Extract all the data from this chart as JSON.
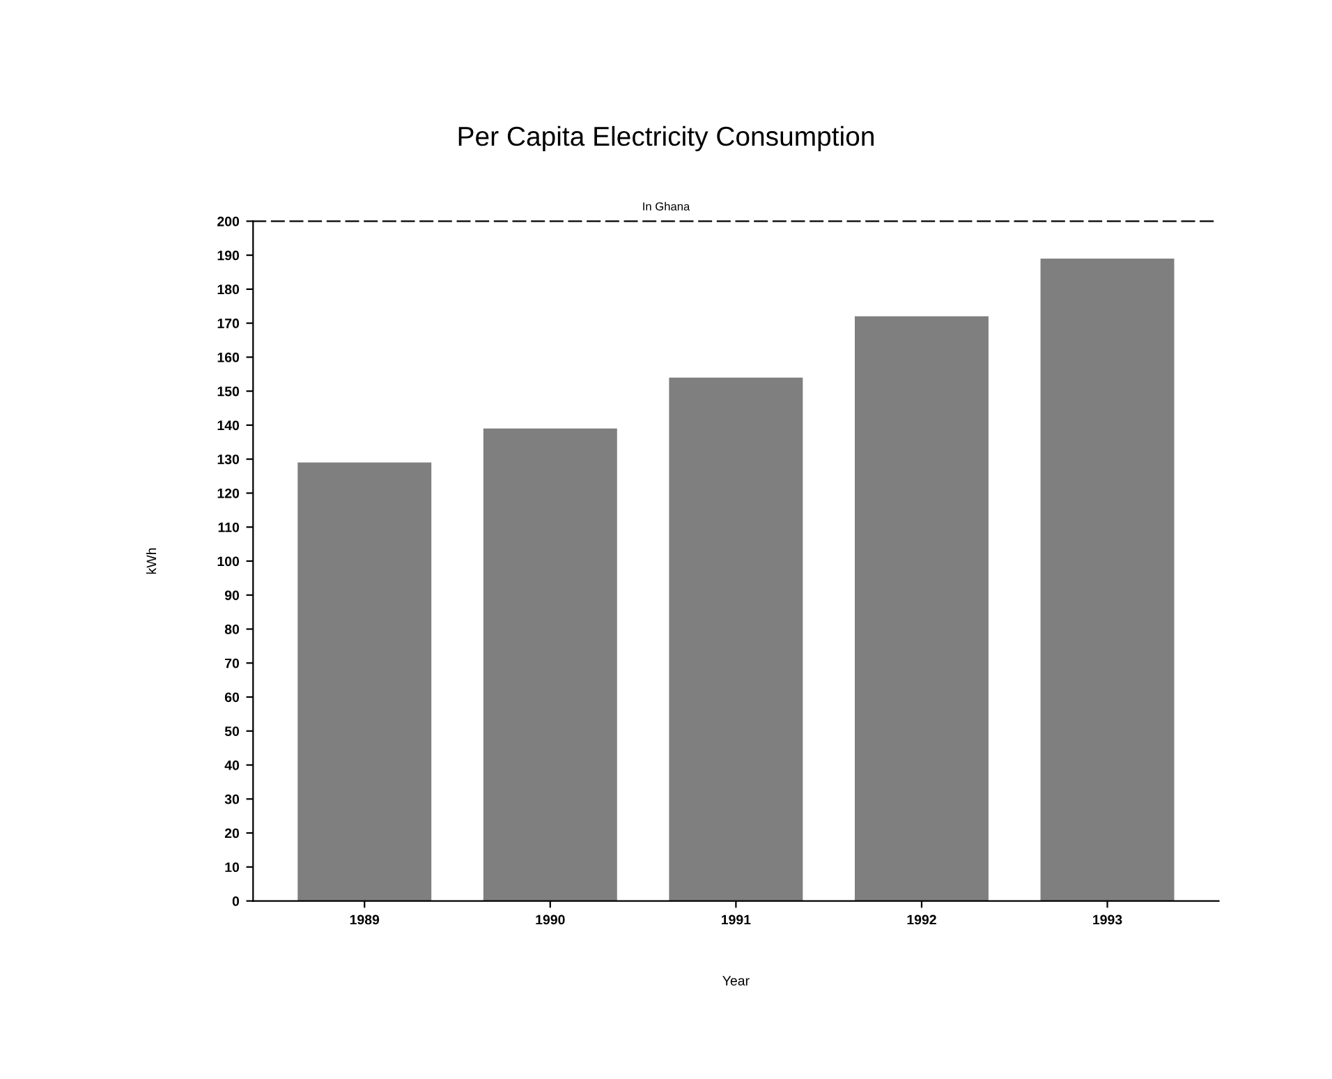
{
  "chart_data": {
    "type": "bar",
    "title": "Per Capita Electricity Consumption",
    "subtitle": "In Ghana",
    "xlabel": "Year",
    "ylabel": "kWh",
    "categories": [
      "1989",
      "1990",
      "1991",
      "1992",
      "1993"
    ],
    "values": [
      129,
      139,
      154,
      172,
      189
    ],
    "color": "#7f7f7f",
    "ylim": [
      0,
      200
    ],
    "yticks": [
      0,
      10,
      20,
      30,
      40,
      50,
      60,
      70,
      80,
      90,
      100,
      110,
      120,
      130,
      140,
      150,
      160,
      170,
      180,
      190,
      200
    ],
    "grid": false
  }
}
